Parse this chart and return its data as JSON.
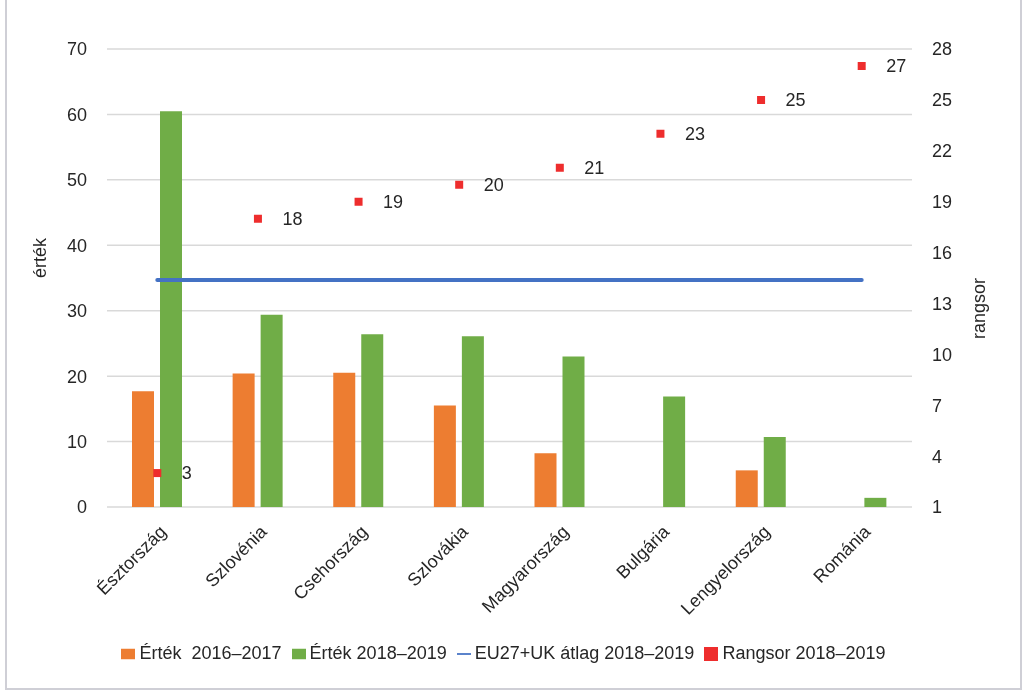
{
  "chart_data": {
    "type": "bar",
    "categories": [
      "Észtország",
      "Szlovénia",
      "Csehország",
      "Szlovákia",
      "Magyarország",
      "Bulgária",
      "Lengyelország",
      "Románia"
    ],
    "ylabel": "érték",
    "y2label": "rangsor",
    "ylim": [
      0,
      70
    ],
    "yticks": [
      0,
      10,
      20,
      30,
      40,
      50,
      60,
      70
    ],
    "y2lim": [
      1,
      28
    ],
    "y2ticks": [
      1,
      4,
      7,
      10,
      13,
      16,
      19,
      22,
      25,
      28
    ],
    "grid": "y",
    "legend": "bottom",
    "series": [
      {
        "name": "Érték  2016–2017",
        "color": "#ed7d31",
        "values": [
          17.7,
          20.4,
          20.5,
          15.5,
          8.2,
          null,
          5.6,
          null
        ]
      },
      {
        "name": "Érték 2018–2019",
        "color": "#70ad47",
        "values": [
          60.5,
          29.4,
          26.4,
          26.1,
          23.0,
          16.9,
          10.7,
          1.4
        ]
      },
      {
        "name": "EU27+UK átlag 2018–2019",
        "type": "line",
        "color": "#4472c4",
        "marker": "none",
        "line_style": "solid",
        "values": [
          34.7,
          34.7,
          34.7,
          34.7,
          34.7,
          34.7,
          34.7,
          34.7
        ]
      },
      {
        "name": "Rangsor 2018–2019",
        "type": "scatter",
        "axis": "y2",
        "color": "#ee2d2d",
        "marker": "square",
        "data_labels": true,
        "values": [
          3,
          18,
          19,
          20,
          21,
          23,
          25,
          27
        ]
      }
    ]
  }
}
